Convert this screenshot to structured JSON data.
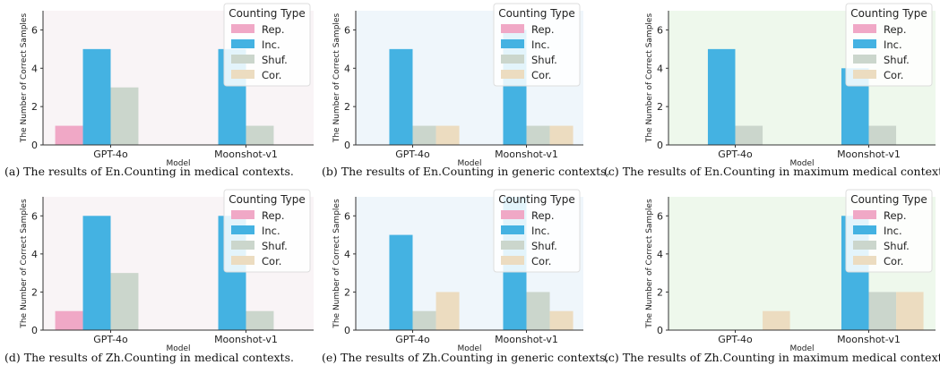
{
  "chart_data": [
    {
      "type": "bar",
      "caption": "(a) The results of En.Counting in medical contexts.",
      "categories": [
        "GPT-4o",
        "Moonshot-v1"
      ],
      "series": [
        {
          "name": "Rep.",
          "values": [
            1,
            0
          ]
        },
        {
          "name": "Inc.",
          "values": [
            5,
            5
          ]
        },
        {
          "name": "Shuf.",
          "values": [
            3,
            1
          ]
        },
        {
          "name": "Cor.",
          "values": [
            0,
            0
          ]
        }
      ],
      "xlabel": "Model",
      "ylabel": "The Number of Correct Samples",
      "ylim": [
        0,
        7
      ],
      "yticks": [
        "0",
        "2",
        "4",
        "6"
      ],
      "legend_title": "Counting Type",
      "legend_position": "top-right",
      "background": "#f9f4f6"
    },
    {
      "type": "bar",
      "caption": "(b) The results of En.Counting in generic contexts.",
      "categories": [
        "GPT-4o",
        "Moonshot-v1"
      ],
      "series": [
        {
          "name": "Rep.",
          "values": [
            0,
            0
          ]
        },
        {
          "name": "Inc.",
          "values": [
            5,
            6
          ]
        },
        {
          "name": "Shuf.",
          "values": [
            1,
            1
          ]
        },
        {
          "name": "Cor.",
          "values": [
            1,
            1
          ]
        }
      ],
      "xlabel": "Model",
      "ylabel": "The Number of Correct Samples",
      "ylim": [
        0,
        7
      ],
      "yticks": [
        "0",
        "2",
        "4",
        "6"
      ],
      "legend_title": "Counting Type",
      "legend_position": "top-right",
      "background": "#eff6fb"
    },
    {
      "type": "bar",
      "caption": "(c) The results of En.Counting in maximum medical contexts.",
      "categories": [
        "GPT-4o",
        "Moonshot-v1"
      ],
      "series": [
        {
          "name": "Rep.",
          "values": [
            0,
            0
          ]
        },
        {
          "name": "Inc.",
          "values": [
            5,
            4
          ]
        },
        {
          "name": "Shuf.",
          "values": [
            1,
            1
          ]
        },
        {
          "name": "Cor.",
          "values": [
            0,
            0
          ]
        }
      ],
      "xlabel": "Model",
      "ylabel": "The Number of Correct Samples",
      "ylim": [
        0,
        7
      ],
      "yticks": [
        "0",
        "2",
        "4",
        "6"
      ],
      "legend_title": "Counting Type",
      "legend_position": "top-right",
      "background": "#eef8ec"
    },
    {
      "type": "bar",
      "caption": "(d) The results of Zh.Counting in medical contexts.",
      "categories": [
        "GPT-4o",
        "Moonshot-v1"
      ],
      "series": [
        {
          "name": "Rep.",
          "values": [
            1,
            0
          ]
        },
        {
          "name": "Inc.",
          "values": [
            6,
            6
          ]
        },
        {
          "name": "Shuf.",
          "values": [
            3,
            1
          ]
        },
        {
          "name": "Cor.",
          "values": [
            0,
            0
          ]
        }
      ],
      "xlabel": "Model",
      "ylabel": "The Number of Correct Samples",
      "ylim": [
        0,
        7
      ],
      "yticks": [
        "0",
        "2",
        "4",
        "6"
      ],
      "legend_title": "Counting Type",
      "legend_position": "top-right",
      "background": "#f9f4f6"
    },
    {
      "type": "bar",
      "caption": "(e) The results of Zh.Counting in generic contexts.",
      "categories": [
        "GPT-4o",
        "Moonshot-v1"
      ],
      "series": [
        {
          "name": "Rep.",
          "values": [
            0,
            0
          ]
        },
        {
          "name": "Inc.",
          "values": [
            5,
            7
          ]
        },
        {
          "name": "Shuf.",
          "values": [
            1,
            2
          ]
        },
        {
          "name": "Cor.",
          "values": [
            2,
            1
          ]
        }
      ],
      "xlabel": "Model",
      "ylabel": "The Number of Correct Samples",
      "ylim": [
        0,
        7
      ],
      "yticks": [
        "0",
        "2",
        "4",
        "6"
      ],
      "legend_title": "Counting Type",
      "legend_position": "top-right",
      "background": "#eff6fb"
    },
    {
      "type": "bar",
      "caption": "(c) The results of Zh.Counting in maximum medical contexts.",
      "categories": [
        "GPT-4o",
        "Moonshot-v1"
      ],
      "series": [
        {
          "name": "Rep.",
          "values": [
            0,
            0
          ]
        },
        {
          "name": "Inc.",
          "values": [
            0,
            6
          ]
        },
        {
          "name": "Shuf.",
          "values": [
            0,
            2
          ]
        },
        {
          "name": "Cor.",
          "values": [
            1,
            2
          ]
        }
      ],
      "xlabel": "Model",
      "ylabel": "The Number of Correct Samples",
      "ylim": [
        0,
        7
      ],
      "yticks": [
        "0",
        "2",
        "4",
        "6"
      ],
      "legend_title": "Counting Type",
      "legend_position": "top-right",
      "background": "#eef8ec"
    }
  ],
  "series_colors": {
    "Rep.": "#f0a8c6",
    "Inc.": "#44b2e2",
    "Shuf.": "#cbd6cc",
    "Cor.": "#ecdcc0"
  }
}
